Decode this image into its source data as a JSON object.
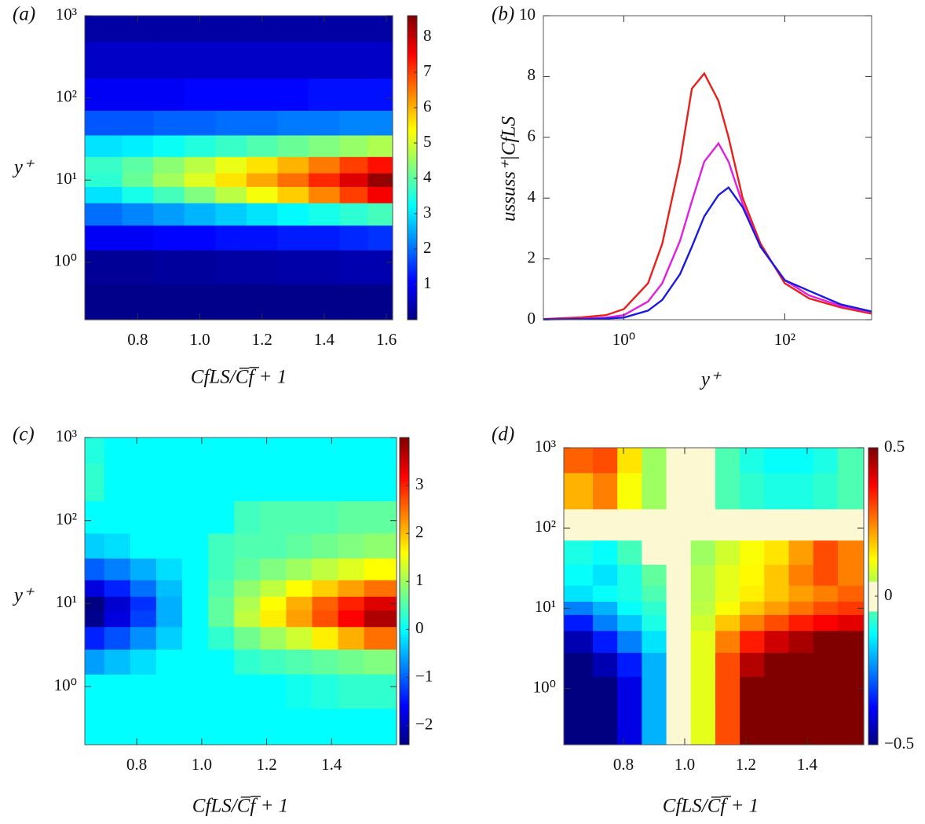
{
  "chart_data": [
    {
      "type": "heatmap",
      "panel_label": "(a)",
      "xlabel": "CfLS/C̅f̅ + 1",
      "ylabel": "y⁺",
      "colormap": "jet",
      "yscale": "log",
      "xlim": [
        0.63,
        1.62
      ],
      "ylim": [
        0.2,
        1000
      ],
      "xticks": [
        0.8,
        {
          "value": 1.0,
          "label": "1.0"
        },
        1.2,
        1.4,
        1.6
      ],
      "yticks": [
        {
          "value": 1,
          "label": "10⁰"
        },
        {
          "value": 10,
          "label": "10¹"
        },
        {
          "value": 100,
          "label": "10²"
        },
        {
          "value": 1000,
          "label": "10³"
        }
      ],
      "zlim": [
        0,
        8.6
      ],
      "zticks": [
        1,
        2,
        3,
        4,
        5,
        6,
        7,
        8
      ],
      "x": [
        0.7,
        0.8,
        0.9,
        1.0,
        1.1,
        1.2,
        1.3,
        1.4,
        1.5,
        1.58
      ],
      "y": [
        0.3,
        1,
        2,
        4,
        7,
        10,
        15,
        25,
        50,
        100,
        300,
        800
      ],
      "z": [
        [
          0.1,
          0.1,
          0.1,
          0.1,
          0.1,
          0.1,
          0.1,
          0.1,
          0.1,
          0.1
        ],
        [
          0.2,
          0.2,
          0.25,
          0.25,
          0.3,
          0.3,
          0.35,
          0.35,
          0.4,
          0.4
        ],
        [
          1.0,
          1.0,
          1.1,
          1.1,
          1.2,
          1.2,
          1.3,
          1.3,
          1.4,
          1.5
        ],
        [
          2.0,
          2.2,
          2.4,
          2.6,
          2.8,
          3.0,
          3.2,
          3.4,
          3.6,
          3.8
        ],
        [
          3.0,
          3.4,
          3.8,
          4.3,
          4.8,
          5.3,
          5.8,
          6.4,
          7.0,
          7.6
        ],
        [
          3.6,
          4.1,
          4.6,
          5.1,
          5.6,
          6.1,
          6.6,
          7.2,
          7.8,
          8.4
        ],
        [
          3.7,
          4.0,
          4.4,
          4.8,
          5.2,
          5.6,
          6.0,
          6.5,
          7.0,
          7.4
        ],
        [
          3.0,
          3.1,
          3.3,
          3.5,
          3.7,
          3.9,
          4.1,
          4.3,
          4.5,
          4.7
        ],
        [
          1.8,
          1.8,
          1.9,
          1.9,
          2.0,
          2.0,
          2.1,
          2.1,
          2.2,
          2.2
        ],
        [
          1.0,
          1.0,
          1.0,
          1.1,
          1.1,
          1.1,
          1.1,
          1.2,
          1.2,
          1.2
        ],
        [
          0.6,
          0.6,
          0.6,
          0.6,
          0.6,
          0.6,
          0.6,
          0.6,
          0.6,
          0.6
        ],
        [
          0.3,
          0.3,
          0.3,
          0.3,
          0.3,
          0.3,
          0.3,
          0.3,
          0.3,
          0.3
        ]
      ]
    },
    {
      "type": "line",
      "panel_label": "(b)",
      "xlabel": "y⁺",
      "ylabel": "ussuss⁺|CfLS",
      "xscale": "log",
      "xlim": [
        0.1,
        1200
      ],
      "ylim": [
        0,
        10
      ],
      "xticks": [
        {
          "value": 1,
          "label": "10⁰"
        },
        {
          "value": 100,
          "label": "10²"
        }
      ],
      "yticks": [
        0,
        2,
        4,
        6,
        8,
        10
      ],
      "x": [
        0.1,
        0.3,
        0.6,
        1,
        2,
        3,
        5,
        7,
        10,
        15,
        20,
        30,
        50,
        100,
        200,
        500,
        1200
      ],
      "series": [
        {
          "color": "#e8201c",
          "values": [
            0.02,
            0.08,
            0.15,
            0.35,
            1.2,
            2.5,
            5.2,
            7.6,
            8.1,
            7.2,
            6.0,
            4.0,
            2.5,
            1.2,
            0.7,
            0.4,
            0.2
          ]
        },
        {
          "color": "#e020e0",
          "values": [
            0.01,
            0.03,
            0.07,
            0.15,
            0.6,
            1.2,
            2.6,
            3.9,
            5.2,
            5.8,
            5.2,
            3.8,
            2.4,
            1.3,
            0.8,
            0.45,
            0.25
          ]
        },
        {
          "color": "#1a1ae0",
          "values": [
            0.01,
            0.02,
            0.04,
            0.07,
            0.3,
            0.65,
            1.5,
            2.4,
            3.4,
            4.1,
            4.35,
            3.7,
            2.4,
            1.3,
            0.95,
            0.5,
            0.27
          ]
        }
      ]
    },
    {
      "type": "heatmap",
      "panel_label": "(c)",
      "xlabel": "CfLS/C̅f̅ + 1",
      "ylabel": "y⁺",
      "colormap": "jet",
      "yscale": "log",
      "xlim": [
        0.64,
        1.6
      ],
      "ylim": [
        0.2,
        1000
      ],
      "xticks": [
        0.8,
        {
          "value": 1.0,
          "label": "1.0"
        },
        1.2,
        1.4
      ],
      "yticks": [
        {
          "value": 1,
          "label": "10⁰"
        },
        {
          "value": 10,
          "label": "10¹"
        },
        {
          "value": 100,
          "label": "10²"
        },
        {
          "value": 1000,
          "label": "10³"
        }
      ],
      "zlim": [
        -2.4,
        4.0
      ],
      "zticks": [
        {
          "value": -2,
          "label": "−2"
        },
        {
          "value": -1,
          "label": "−1"
        },
        0,
        1,
        2,
        3
      ],
      "x": [
        0.66,
        0.74,
        0.82,
        0.9,
        0.98,
        1.06,
        1.14,
        1.22,
        1.3,
        1.38,
        1.46,
        1.54
      ],
      "y": [
        0.3,
        1,
        2,
        4,
        7,
        10,
        15,
        25,
        50,
        100,
        300,
        800
      ],
      "z": [
        [
          0,
          0,
          0,
          0,
          0,
          0,
          0,
          0,
          0,
          0,
          0,
          0
        ],
        [
          0,
          0,
          0,
          0,
          0,
          0,
          0,
          0,
          0.1,
          0.2,
          0.3,
          0.3
        ],
        [
          -0.6,
          -0.4,
          -0.2,
          0,
          0,
          0,
          0.3,
          0.4,
          0.5,
          0.6,
          0.7,
          0.8
        ],
        [
          -1.4,
          -1.1,
          -0.7,
          -0.3,
          0,
          0.3,
          0.7,
          1.0,
          1.3,
          1.7,
          2.1,
          2.5
        ],
        [
          -2.3,
          -1.8,
          -1.2,
          -0.5,
          0,
          0.6,
          1.2,
          1.7,
          2.2,
          2.7,
          3.2,
          3.7
        ],
        [
          -2.4,
          -1.9,
          -1.3,
          -0.5,
          0,
          0.6,
          1.1,
          1.6,
          2.1,
          2.6,
          3.0,
          3.4
        ],
        [
          -1.8,
          -1.4,
          -0.9,
          -0.4,
          0,
          0.5,
          0.9,
          1.2,
          1.6,
          1.9,
          2.2,
          2.5
        ],
        [
          -1.0,
          -0.8,
          -0.5,
          -0.2,
          0,
          0.4,
          0.6,
          0.8,
          1.0,
          1.2,
          1.4,
          1.6
        ],
        [
          -0.3,
          -0.2,
          0,
          0,
          0,
          0.4,
          0.5,
          0.5,
          0.6,
          0.7,
          0.8,
          0.9
        ],
        [
          0,
          0,
          0,
          0,
          0,
          0,
          0.4,
          0.5,
          0.5,
          0.5,
          0.6,
          0.6
        ],
        [
          0.3,
          0,
          0,
          0,
          0,
          0,
          0,
          0,
          0,
          0,
          0,
          0
        ],
        [
          0.2,
          0,
          0,
          0,
          0,
          0,
          0,
          0,
          0,
          0,
          0,
          0
        ]
      ]
    },
    {
      "type": "heatmap",
      "panel_label": "(d)",
      "xlabel": "CfLS/C̅f̅ + 1",
      "colormap": "jet",
      "zero_color": "#fbf8d2",
      "yscale": "log",
      "xlim": [
        0.605,
        1.585
      ],
      "ylim": [
        0.2,
        1000
      ],
      "xticks": [
        0.8,
        {
          "value": 1.0,
          "label": "1.0"
        },
        1.2,
        1.4
      ],
      "yticks": [
        {
          "value": 1,
          "label": "10⁰"
        },
        {
          "value": 10,
          "label": "10¹"
        },
        {
          "value": 100,
          "label": "10²"
        },
        {
          "value": 1000,
          "label": "10³"
        }
      ],
      "zlim": [
        -0.5,
        0.5
      ],
      "zticks": [
        {
          "value": -0.5,
          "label": "−0.5"
        },
        0,
        0.5
      ],
      "x": [
        0.66,
        0.74,
        0.82,
        0.9,
        0.98,
        1.06,
        1.14,
        1.22,
        1.3,
        1.38,
        1.46,
        1.54
      ],
      "y": [
        0.3,
        1,
        2,
        4,
        7,
        10,
        15,
        25,
        50,
        100,
        300,
        800
      ],
      "z": [
        [
          -0.5,
          -0.5,
          -0.4,
          -0.2,
          0,
          0.1,
          0.3,
          0.5,
          0.5,
          0.5,
          0.5,
          0.5
        ],
        [
          -0.5,
          -0.5,
          -0.4,
          -0.2,
          0,
          0.1,
          0.3,
          0.5,
          0.5,
          0.5,
          0.5,
          0.5
        ],
        [
          -0.5,
          -0.45,
          -0.35,
          -0.2,
          0,
          0.1,
          0.3,
          0.45,
          0.5,
          0.5,
          0.5,
          0.5
        ],
        [
          -0.45,
          -0.35,
          -0.25,
          -0.15,
          0,
          0.1,
          0.25,
          0.35,
          0.42,
          0.46,
          0.5,
          0.5
        ],
        [
          -0.35,
          -0.25,
          -0.18,
          -0.1,
          0,
          0.08,
          0.18,
          0.25,
          0.3,
          0.35,
          0.38,
          0.4
        ],
        [
          -0.25,
          -0.2,
          -0.12,
          -0.08,
          0,
          0.06,
          0.12,
          0.18,
          0.22,
          0.26,
          0.3,
          0.32
        ],
        [
          -0.15,
          -0.12,
          -0.1,
          -0.05,
          0,
          0.05,
          0.1,
          0.14,
          0.18,
          0.22,
          0.25,
          0.28
        ],
        [
          -0.12,
          -0.15,
          -0.1,
          -0.03,
          0,
          0.05,
          0.1,
          0.13,
          0.18,
          0.25,
          0.3,
          0.25
        ],
        [
          -0.1,
          -0.12,
          -0.06,
          0,
          0,
          0.03,
          0.08,
          0.12,
          0.15,
          0.22,
          0.3,
          0.25
        ],
        [
          0,
          0,
          0,
          0,
          0,
          0,
          0,
          0,
          0,
          0,
          0,
          0
        ],
        [
          0.2,
          0.25,
          0.12,
          0.03,
          0,
          0,
          -0.05,
          -0.08,
          -0.1,
          -0.1,
          -0.08,
          -0.05
        ],
        [
          0.28,
          0.3,
          0.15,
          0.03,
          0,
          0,
          -0.05,
          -0.1,
          -0.12,
          -0.12,
          -0.1,
          -0.05
        ]
      ]
    }
  ]
}
